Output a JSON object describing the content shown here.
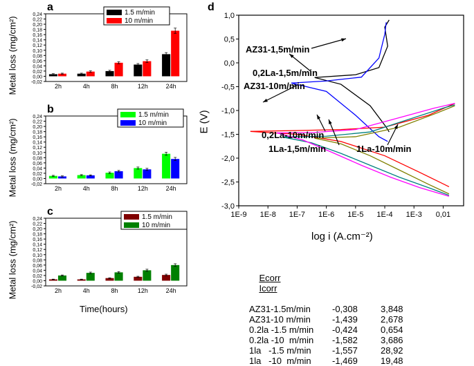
{
  "panels": {
    "a": {
      "label": "a",
      "ylabel": "Metal loss (mg/cm²)",
      "legend": [
        {
          "label": "1.5 m/min",
          "color": "#000000"
        },
        {
          "label": "10  m/min",
          "color": "#ff0000"
        }
      ],
      "categories": [
        "2h",
        "4h",
        "8h",
        "12h",
        "24h"
      ],
      "yticks": [
        "-0,02",
        "0,00",
        "0,02",
        "0,04",
        "0,06",
        "0,08",
        "0,10",
        "0,12",
        "0,14",
        "0,16",
        "0,18",
        "0,20",
        "0,22",
        "0,24"
      ],
      "ymin": -0.02,
      "ymax": 0.24,
      "series": [
        {
          "color": "#000000",
          "values": [
            0.008,
            0.01,
            0.02,
            0.045,
            0.085
          ],
          "err": [
            0.002,
            0.002,
            0.003,
            0.004,
            0.006
          ]
        },
        {
          "color": "#ff0000",
          "values": [
            0.01,
            0.018,
            0.052,
            0.058,
            0.175
          ],
          "err": [
            0.002,
            0.003,
            0.004,
            0.005,
            0.01
          ]
        }
      ]
    },
    "b": {
      "label": "b",
      "ylabel": "Metal loss (mg/cm²)",
      "legend": [
        {
          "label": "1.5 m/min",
          "color": "#00ff00"
        },
        {
          "label": "10  m/min",
          "color": "#0000ff"
        }
      ],
      "categories": [
        "2h",
        "4h",
        "8h",
        "12h",
        "24h"
      ],
      "yticks": [
        "-0,02",
        "0,00",
        "0,02",
        "0,04",
        "0,06",
        "0,08",
        "0,10",
        "0,12",
        "0,14",
        "0,16",
        "0,18",
        "0,20",
        "0,22",
        "0,24"
      ],
      "ymin": -0.02,
      "ymax": 0.24,
      "series": [
        {
          "color": "#00ff00",
          "values": [
            0.01,
            0.013,
            0.022,
            0.04,
            0.095
          ],
          "err": [
            0.002,
            0.002,
            0.003,
            0.004,
            0.006
          ]
        },
        {
          "color": "#0000ff",
          "values": [
            0.008,
            0.012,
            0.028,
            0.035,
            0.075
          ],
          "err": [
            0.002,
            0.002,
            0.003,
            0.004,
            0.006
          ]
        }
      ]
    },
    "c": {
      "label": "c",
      "ylabel": "Metal loss (mg/cm²)",
      "xlabel": "Time(hours)",
      "legend": [
        {
          "label": "1.5 m/min",
          "color": "#800000"
        },
        {
          "label": "10  m/min",
          "color": "#008000"
        }
      ],
      "categories": [
        "2h",
        "4h",
        "8h",
        "12h",
        "24h"
      ],
      "yticks": [
        "-0,02",
        "0,00",
        "0,02",
        "0,04",
        "0,06",
        "0,08",
        "0,10",
        "0,12",
        "0,14",
        "0,16",
        "0,18",
        "0,20",
        "0,22",
        "0,24"
      ],
      "ymin": -0.02,
      "ymax": 0.24,
      "series": [
        {
          "color": "#800000",
          "values": [
            0.005,
            0.005,
            0.01,
            0.015,
            0.022
          ],
          "err": [
            0.001,
            0.001,
            0.001,
            0.002,
            0.003
          ]
        },
        {
          "color": "#008000",
          "values": [
            0.02,
            0.03,
            0.032,
            0.04,
            0.06
          ],
          "err": [
            0.002,
            0.003,
            0.003,
            0.004,
            0.005
          ]
        }
      ]
    }
  },
  "tafel": {
    "label": "d",
    "ylabel": "E (V)",
    "xlabel": "log i (A.cm⁻²)",
    "yticks": [
      "-3,0",
      "-2,5",
      "-2,0",
      "-1,5",
      "-1,0",
      "-0,5",
      "0,0",
      "0,5",
      "1,0"
    ],
    "ymin": -3.0,
    "ymax": 1.0,
    "xticks": [
      "1E-9",
      "1E-8",
      "1E-7",
      "1E-6",
      "1E-5",
      "1E-4",
      "1E-3",
      "0,01"
    ],
    "xexps": [
      -9,
      -8,
      -7,
      -6,
      -5,
      -4,
      -3,
      -2
    ],
    "xmin": -9,
    "xmax": -1.3,
    "annotations": [
      {
        "text": "AZ31-1,5m/min"
      },
      {
        "text": "0,2La-1,5m/min"
      },
      {
        "text": "AZ31-10m/min"
      },
      {
        "text": "0,2La-10m/min"
      },
      {
        "text": "1La-1,5m/min"
      },
      {
        "text": "1La-10m/min"
      }
    ],
    "curves": [
      {
        "name": "AZ31-1.5",
        "color": "#000000",
        "Ecorr": -0.308,
        "logIcorr": -6.4,
        "pts": [
          [
            -6.4,
            -0.308
          ],
          [
            -5.0,
            -0.25
          ],
          [
            -4.2,
            -0.1
          ],
          [
            -3.9,
            0.35
          ],
          [
            -4.0,
            0.75
          ],
          [
            -3.85,
            0.9
          ],
          [
            -6.4,
            -0.308
          ],
          [
            -5.5,
            -0.45
          ],
          [
            -4.5,
            -0.9
          ],
          [
            -3.95,
            -1.35
          ],
          [
            -3.85,
            -1.45
          ]
        ]
      },
      {
        "name": "0.2La-1.5",
        "color": "#0000ff",
        "Ecorr": -0.424,
        "logIcorr": -7.2,
        "pts": [
          [
            -7.2,
            -0.424
          ],
          [
            -6.0,
            -0.38
          ],
          [
            -4.8,
            -0.3
          ],
          [
            -4.2,
            0.1
          ],
          [
            -4.0,
            0.6
          ],
          [
            -3.95,
            0.85
          ],
          [
            -7.2,
            -0.424
          ],
          [
            -6.0,
            -0.6
          ],
          [
            -5.0,
            -1.1
          ],
          [
            -4.2,
            -1.55
          ],
          [
            -3.9,
            -1.65
          ]
        ]
      },
      {
        "name": "AZ31-10",
        "color": "#ff0000",
        "Ecorr": -1.439,
        "logIcorr": -8.6,
        "pts": [
          [
            -8.6,
            -1.439
          ],
          [
            -7.0,
            -1.42
          ],
          [
            -5.5,
            -1.4
          ],
          [
            -4.0,
            -1.35
          ],
          [
            -2.5,
            -1.1
          ],
          [
            -1.6,
            -0.85
          ],
          [
            -8.6,
            -1.439
          ],
          [
            -7.0,
            -1.5
          ],
          [
            -5.5,
            -1.65
          ],
          [
            -4.0,
            -1.95
          ],
          [
            -2.8,
            -2.3
          ],
          [
            -1.8,
            -2.6
          ]
        ]
      },
      {
        "name": "0.2La-10",
        "color": "#808000",
        "Ecorr": -1.582,
        "logIcorr": -6.4,
        "pts": [
          [
            -6.4,
            -1.582
          ],
          [
            -5.0,
            -1.55
          ],
          [
            -3.5,
            -1.35
          ],
          [
            -2.2,
            -1.05
          ],
          [
            -1.6,
            -0.9
          ],
          [
            -6.4,
            -1.582
          ],
          [
            -5.5,
            -1.7
          ],
          [
            -4.5,
            -1.95
          ],
          [
            -3.5,
            -2.25
          ],
          [
            -2.5,
            -2.55
          ],
          [
            -1.8,
            -2.75
          ]
        ]
      },
      {
        "name": "1La-1.5",
        "color": "#008080",
        "Ecorr": -1.557,
        "logIcorr": -7.5,
        "pts": [
          [
            -7.5,
            -1.557
          ],
          [
            -6.0,
            -1.54
          ],
          [
            -4.5,
            -1.45
          ],
          [
            -3.0,
            -1.15
          ],
          [
            -2.0,
            -0.95
          ],
          [
            -1.6,
            -0.88
          ],
          [
            -7.5,
            -1.557
          ],
          [
            -6.5,
            -1.68
          ],
          [
            -5.5,
            -1.9
          ],
          [
            -4.5,
            -2.15
          ],
          [
            -3.5,
            -2.4
          ],
          [
            -2.5,
            -2.62
          ],
          [
            -1.8,
            -2.78
          ]
        ]
      },
      {
        "name": "1La-10",
        "color": "#ff00ff",
        "Ecorr": -1.469,
        "logIcorr": -7.7,
        "pts": [
          [
            -7.7,
            -1.469
          ],
          [
            -6.4,
            -1.46
          ],
          [
            -5.0,
            -1.4
          ],
          [
            -3.5,
            -1.15
          ],
          [
            -2.3,
            -0.95
          ],
          [
            -1.6,
            -0.85
          ],
          [
            -7.7,
            -1.469
          ],
          [
            -6.8,
            -1.62
          ],
          [
            -5.8,
            -1.88
          ],
          [
            -4.8,
            -2.15
          ],
          [
            -3.8,
            -2.4
          ],
          [
            -2.8,
            -2.62
          ],
          [
            -1.8,
            -2.8
          ]
        ]
      }
    ]
  },
  "table": {
    "headers": [
      "Ecorr",
      "Icorr"
    ],
    "rows": [
      {
        "name": "AZ31-1.5m/min",
        "ecorr": "-0,308",
        "icorr": "3,848"
      },
      {
        "name": "AZ31-10 m/min",
        "ecorr": "-1,439",
        "icorr": "2,678"
      },
      {
        "name": "0.2la -1.5 m/min",
        "ecorr": "-0,424",
        "icorr": "0,654"
      },
      {
        "name": "0.2la -10  m/min",
        "ecorr": "-1,582",
        "icorr": "3,686"
      },
      {
        "name": "1la   -1.5 m/min",
        "ecorr": "-1,557",
        "icorr": "28,92"
      },
      {
        "name": "1la   -10  m/min",
        "ecorr": "-1,469",
        "icorr": "19,48"
      }
    ]
  }
}
